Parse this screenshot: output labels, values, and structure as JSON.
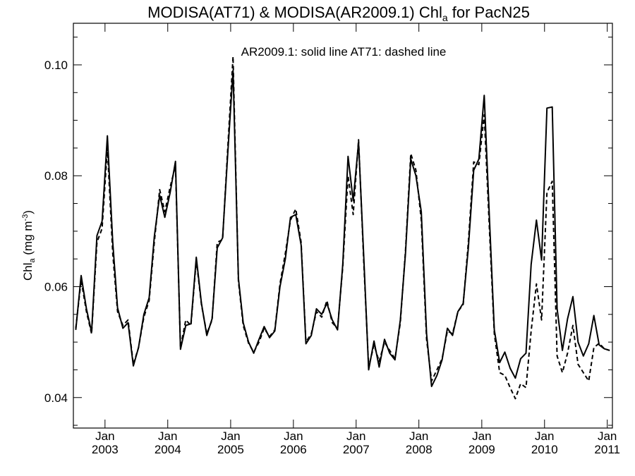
{
  "chart_data": {
    "type": "line",
    "title_parts": {
      "main": "MODISA(AT71) & MODISA(AR2009.1)  Chl",
      "sub": "a",
      "tail": " for PacN25"
    },
    "ylabel_parts": {
      "main": "Chl",
      "sub": "a",
      "unit": " (mg m",
      "sup": "-3",
      "close": ")"
    },
    "annotation": "AR2009.1: solid line   AT71: dashed line",
    "xlim": [
      "2002-07-01",
      "2011-01-31"
    ],
    "ylim": [
      0.0345,
      0.1075
    ],
    "yticks": [
      0.04,
      0.06,
      0.08,
      0.1
    ],
    "ytick_labels": [
      "0.04",
      "0.06",
      "0.08",
      "0.10"
    ],
    "xticks": [
      "2003-01-01",
      "2004-01-01",
      "2005-01-01",
      "2006-01-01",
      "2007-01-01",
      "2008-01-01",
      "2009-01-01",
      "2010-01-01",
      "2011-01-01"
    ],
    "xtick_month_label": "Jan",
    "xtick_year_labels": [
      "2003",
      "2004",
      "2005",
      "2006",
      "2007",
      "2008",
      "2009",
      "2010",
      "2011"
    ],
    "grid": false,
    "legend": "none",
    "series": [
      {
        "style": "solid",
        "points": [
          [
            "2002-07-15",
            0.0522
          ],
          [
            "2002-08-15",
            0.062
          ],
          [
            "2002-09-15",
            0.056
          ],
          [
            "2002-10-15",
            0.0518
          ],
          [
            "2002-11-15",
            0.0692
          ],
          [
            "2002-12-15",
            0.0718
          ],
          [
            "2003-01-15",
            0.0872
          ],
          [
            "2003-02-15",
            0.068
          ],
          [
            "2003-03-15",
            0.0562
          ],
          [
            "2003-04-15",
            0.0525
          ],
          [
            "2003-05-15",
            0.0535
          ],
          [
            "2003-06-15",
            0.0457
          ],
          [
            "2003-07-15",
            0.049
          ],
          [
            "2003-08-15",
            0.055
          ],
          [
            "2003-09-15",
            0.058
          ],
          [
            "2003-10-15",
            0.069
          ],
          [
            "2003-11-15",
            0.0765
          ],
          [
            "2003-12-15",
            0.0725
          ],
          [
            "2004-01-15",
            0.077
          ],
          [
            "2004-02-15",
            0.0826
          ],
          [
            "2004-03-15",
            0.0487
          ],
          [
            "2004-04-15",
            0.053
          ],
          [
            "2004-05-15",
            0.0533
          ],
          [
            "2004-06-15",
            0.0653
          ],
          [
            "2004-07-15",
            0.057
          ],
          [
            "2004-08-15",
            0.0512
          ],
          [
            "2004-09-15",
            0.0542
          ],
          [
            "2004-10-15",
            0.067
          ],
          [
            "2004-11-15",
            0.0688
          ],
          [
            "2004-12-15",
            0.084
          ],
          [
            "2005-01-15",
            0.099
          ],
          [
            "2005-02-15",
            0.0615
          ],
          [
            "2005-03-15",
            0.0535
          ],
          [
            "2005-04-15",
            0.05
          ],
          [
            "2005-05-15",
            0.048
          ],
          [
            "2005-06-15",
            0.0505
          ],
          [
            "2005-07-15",
            0.0528
          ],
          [
            "2005-08-15",
            0.0508
          ],
          [
            "2005-09-15",
            0.052
          ],
          [
            "2005-10-15",
            0.06
          ],
          [
            "2005-11-15",
            0.065
          ],
          [
            "2005-12-15",
            0.0725
          ],
          [
            "2006-01-15",
            0.073
          ],
          [
            "2006-02-15",
            0.0675
          ],
          [
            "2006-03-15",
            0.0497
          ],
          [
            "2006-04-15",
            0.0512
          ],
          [
            "2006-05-15",
            0.056
          ],
          [
            "2006-06-15",
            0.055
          ],
          [
            "2006-07-15",
            0.057
          ],
          [
            "2006-08-15",
            0.054
          ],
          [
            "2006-09-15",
            0.0522
          ],
          [
            "2006-10-15",
            0.064
          ],
          [
            "2006-11-15",
            0.0835
          ],
          [
            "2006-12-15",
            0.0755
          ],
          [
            "2007-01-15",
            0.086
          ],
          [
            "2007-02-15",
            0.065
          ],
          [
            "2007-03-15",
            0.045
          ],
          [
            "2007-04-15",
            0.0502
          ],
          [
            "2007-05-15",
            0.0455
          ],
          [
            "2007-06-15",
            0.0505
          ],
          [
            "2007-07-15",
            0.048
          ],
          [
            "2007-08-15",
            0.0468
          ],
          [
            "2007-09-15",
            0.054
          ],
          [
            "2007-10-15",
            0.066
          ],
          [
            "2007-11-15",
            0.083
          ],
          [
            "2007-12-15",
            0.08
          ],
          [
            "2008-01-15",
            0.0735
          ],
          [
            "2008-02-15",
            0.0515
          ],
          [
            "2008-03-15",
            0.042
          ],
          [
            "2008-04-15",
            0.044
          ],
          [
            "2008-05-15",
            0.0468
          ],
          [
            "2008-06-15",
            0.0525
          ],
          [
            "2008-07-15",
            0.0512
          ],
          [
            "2008-08-15",
            0.0555
          ],
          [
            "2008-09-15",
            0.057
          ],
          [
            "2008-10-15",
            0.067
          ],
          [
            "2008-11-15",
            0.081
          ],
          [
            "2008-12-15",
            0.083
          ],
          [
            "2009-01-15",
            0.0945
          ],
          [
            "2009-02-15",
            0.072
          ],
          [
            "2009-03-15",
            0.0522
          ],
          [
            "2009-04-15",
            0.0463
          ],
          [
            "2009-05-15",
            0.0482
          ],
          [
            "2009-06-15",
            0.0453
          ],
          [
            "2009-07-15",
            0.0435
          ],
          [
            "2009-08-15",
            0.047
          ],
          [
            "2009-09-15",
            0.048
          ],
          [
            "2009-10-15",
            0.064
          ],
          [
            "2009-11-15",
            0.072
          ],
          [
            "2009-12-15",
            0.0648
          ],
          [
            "2010-01-15",
            0.0922
          ],
          [
            "2010-02-15",
            0.0924
          ],
          [
            "2010-03-15",
            0.056
          ],
          [
            "2010-04-15",
            0.0485
          ],
          [
            "2010-05-15",
            0.0542
          ],
          [
            "2010-06-15",
            0.0582
          ],
          [
            "2010-07-15",
            0.05
          ],
          [
            "2010-08-15",
            0.0475
          ],
          [
            "2010-09-15",
            0.0497
          ],
          [
            "2010-10-15",
            0.0548
          ],
          [
            "2010-11-15",
            0.0495
          ],
          [
            "2010-12-15",
            0.0488
          ],
          [
            "2011-01-15",
            0.0485
          ]
        ]
      },
      {
        "style": "dashed",
        "points": [
          [
            "2002-07-15",
            0.0525
          ],
          [
            "2002-08-15",
            0.0612
          ],
          [
            "2002-09-15",
            0.0555
          ],
          [
            "2002-10-15",
            0.0515
          ],
          [
            "2002-11-15",
            0.068
          ],
          [
            "2002-12-15",
            0.0705
          ],
          [
            "2003-01-15",
            0.085
          ],
          [
            "2003-02-15",
            0.066
          ],
          [
            "2003-03-15",
            0.0555
          ],
          [
            "2003-04-15",
            0.053
          ],
          [
            "2003-05-15",
            0.054
          ],
          [
            "2003-06-15",
            0.046
          ],
          [
            "2003-07-15",
            0.049
          ],
          [
            "2003-08-15",
            0.0545
          ],
          [
            "2003-09-15",
            0.0575
          ],
          [
            "2003-10-15",
            0.068
          ],
          [
            "2003-11-15",
            0.0775
          ],
          [
            "2003-12-15",
            0.0735
          ],
          [
            "2004-01-15",
            0.078
          ],
          [
            "2004-02-15",
            0.0818
          ],
          [
            "2004-03-15",
            0.049
          ],
          [
            "2004-04-15",
            0.054
          ],
          [
            "2004-05-15",
            0.053
          ],
          [
            "2004-06-15",
            0.0648
          ],
          [
            "2004-07-15",
            0.0568
          ],
          [
            "2004-08-15",
            0.0515
          ],
          [
            "2004-09-15",
            0.054
          ],
          [
            "2004-10-15",
            0.068
          ],
          [
            "2004-11-15",
            0.0685
          ],
          [
            "2004-12-15",
            0.085
          ],
          [
            "2005-01-15",
            0.1015
          ],
          [
            "2005-02-15",
            0.061
          ],
          [
            "2005-03-15",
            0.053
          ],
          [
            "2005-04-15",
            0.0498
          ],
          [
            "2005-05-15",
            0.0482
          ],
          [
            "2005-06-15",
            0.05
          ],
          [
            "2005-07-15",
            0.0525
          ],
          [
            "2005-08-15",
            0.051
          ],
          [
            "2005-09-15",
            0.0522
          ],
          [
            "2005-10-15",
            0.0605
          ],
          [
            "2005-11-15",
            0.066
          ],
          [
            "2005-12-15",
            0.072
          ],
          [
            "2006-01-15",
            0.074
          ],
          [
            "2006-02-15",
            0.068
          ],
          [
            "2006-03-15",
            0.05
          ],
          [
            "2006-04-15",
            0.0515
          ],
          [
            "2006-05-15",
            0.0555
          ],
          [
            "2006-06-15",
            0.0545
          ],
          [
            "2006-07-15",
            0.0575
          ],
          [
            "2006-08-15",
            0.0535
          ],
          [
            "2006-09-15",
            0.0525
          ],
          [
            "2006-10-15",
            0.0635
          ],
          [
            "2006-11-15",
            0.08
          ],
          [
            "2006-12-15",
            0.073
          ],
          [
            "2007-01-15",
            0.0865
          ],
          [
            "2007-02-15",
            0.064
          ],
          [
            "2007-03-15",
            0.0455
          ],
          [
            "2007-04-15",
            0.0495
          ],
          [
            "2007-05-15",
            0.0465
          ],
          [
            "2007-06-15",
            0.05
          ],
          [
            "2007-07-15",
            0.0485
          ],
          [
            "2007-08-15",
            0.047
          ],
          [
            "2007-09-15",
            0.0535
          ],
          [
            "2007-10-15",
            0.0665
          ],
          [
            "2007-11-15",
            0.084
          ],
          [
            "2007-12-15",
            0.081
          ],
          [
            "2008-01-15",
            0.072
          ],
          [
            "2008-02-15",
            0.0505
          ],
          [
            "2008-03-15",
            0.043
          ],
          [
            "2008-04-15",
            0.045
          ],
          [
            "2008-05-15",
            0.047
          ],
          [
            "2008-06-15",
            0.052
          ],
          [
            "2008-07-15",
            0.0515
          ],
          [
            "2008-08-15",
            0.0555
          ],
          [
            "2008-09-15",
            0.0568
          ],
          [
            "2008-10-15",
            0.068
          ],
          [
            "2008-11-15",
            0.0825
          ],
          [
            "2008-12-15",
            0.082
          ],
          [
            "2009-01-15",
            0.091
          ],
          [
            "2009-02-15",
            0.07
          ],
          [
            "2009-03-15",
            0.0515
          ],
          [
            "2009-04-15",
            0.0445
          ],
          [
            "2009-05-15",
            0.044
          ],
          [
            "2009-06-15",
            0.0418
          ],
          [
            "2009-07-15",
            0.0398
          ],
          [
            "2009-08-15",
            0.0425
          ],
          [
            "2009-09-15",
            0.0418
          ],
          [
            "2009-10-15",
            0.052
          ],
          [
            "2009-11-15",
            0.0605
          ],
          [
            "2009-12-15",
            0.054
          ],
          [
            "2010-01-15",
            0.077
          ],
          [
            "2010-02-15",
            0.079
          ],
          [
            "2010-03-15",
            0.0475
          ],
          [
            "2010-04-15",
            0.0445
          ],
          [
            "2010-05-15",
            0.048
          ],
          [
            "2010-06-15",
            0.053
          ],
          [
            "2010-07-15",
            0.046
          ],
          [
            "2010-08-15",
            0.0445
          ],
          [
            "2010-09-15",
            0.043
          ],
          [
            "2010-10-15",
            0.049
          ],
          [
            "2010-11-15",
            0.0498
          ],
          [
            "2010-12-15",
            0.0488
          ],
          [
            "2011-01-15",
            0.0485
          ]
        ]
      }
    ]
  }
}
